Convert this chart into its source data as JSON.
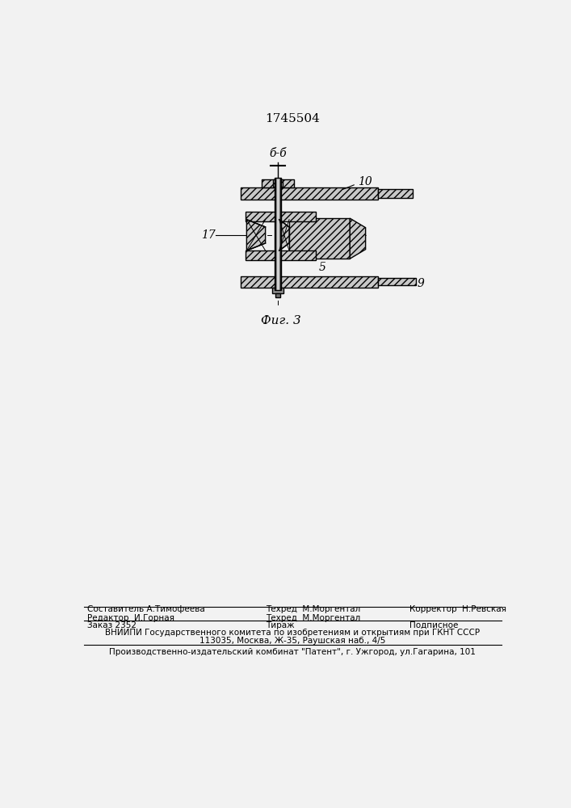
{
  "patent_number": "1745504",
  "figure_label": "Фиг. 3",
  "section_label": "б-б",
  "label_10": "10",
  "label_5": "5",
  "label_9": "9",
  "label_17": "17",
  "bg_color": "#f2f2f2",
  "gray": "#c8c8c8",
  "dark_gray": "#888888",
  "line_color": "#000000",
  "footer_col1_row1": "Составитель А.Тимофеева",
  "footer_col2_row1": "Техред  М.Моргентал",
  "footer_col3_row1": "Корректор  Н.Ревская",
  "footer_col1_row2": "Редактор  И.Горная",
  "footer_col2_row2": "Техред  М.Моргентал",
  "footer_zak": "Заказ 2352",
  "footer_tir": "Тираж",
  "footer_pod": "Подписное",
  "footer_vni": "ВНИИПИ Государственного комитета по изобретениям и открытиям при ГКНТ СССР",
  "footer_addr": "113035, Москва, Ж-35, Раушская наб., 4/5",
  "footer_last": "Производственно-издательский комбинат \"Патент\", г. Ужгород, ул.Гагарина, 101"
}
